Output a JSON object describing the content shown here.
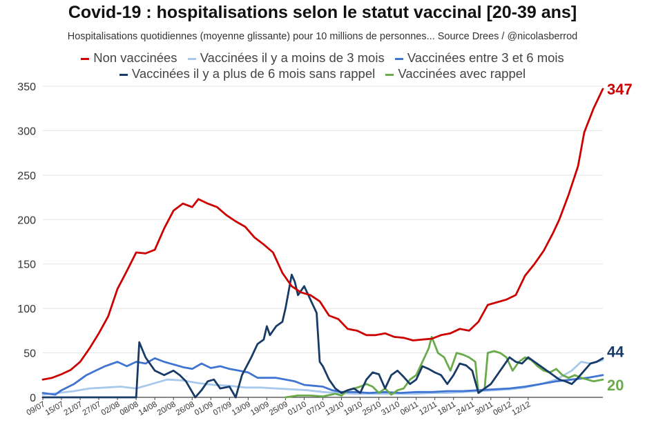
{
  "header": {
    "title": "Covid-19 : hospitalisations selon le statut vaccinal [20-39 ans]",
    "subtitle": "Hospitalisations quotidiennes (moyenne glissante) pour 10 millions de personnes... Source Drees / @nicolasberrod"
  },
  "chart_data": {
    "type": "line",
    "title": "Covid-19 : hospitalisations selon le statut vaccinal [20-39 ans]",
    "ylim": [
      0,
      350
    ],
    "yticks": [
      0,
      50,
      100,
      150,
      200,
      250,
      300,
      350
    ],
    "grid": "horizontal",
    "legend_position": "top",
    "x_tick_labels": [
      "09/07",
      "15/07",
      "21/07",
      "27/07",
      "02/08",
      "08/08",
      "14/08",
      "20/08",
      "26/08",
      "01/09",
      "07/09",
      "13/09",
      "19/09",
      "25/09",
      "01/10",
      "07/10",
      "13/10",
      "19/10",
      "25/10",
      "31/10",
      "06/11",
      "12/11",
      "18/11",
      "24/11",
      "30/11",
      "06/12",
      "12/12"
    ],
    "x_days": 156,
    "series": [
      {
        "name": "Non vaccinées",
        "color": "#cc0000",
        "end_label": "347",
        "points": [
          [
            0,
            20
          ],
          [
            3,
            22
          ],
          [
            6,
            26
          ],
          [
            9,
            31
          ],
          [
            12,
            40
          ],
          [
            15,
            55
          ],
          [
            18,
            72
          ],
          [
            21,
            91
          ],
          [
            24,
            122
          ],
          [
            27,
            142
          ],
          [
            30,
            163
          ],
          [
            33,
            162
          ],
          [
            36,
            166
          ],
          [
            39,
            190
          ],
          [
            42,
            210
          ],
          [
            45,
            218
          ],
          [
            48,
            214
          ],
          [
            50,
            223
          ],
          [
            53,
            218
          ],
          [
            56,
            214
          ],
          [
            59,
            205
          ],
          [
            62,
            198
          ],
          [
            65,
            192
          ],
          [
            68,
            180
          ],
          [
            71,
            172
          ],
          [
            74,
            163
          ],
          [
            77,
            140
          ],
          [
            80,
            125
          ],
          [
            83,
            118
          ],
          [
            86,
            115
          ],
          [
            89,
            108
          ],
          [
            92,
            92
          ],
          [
            95,
            88
          ],
          [
            98,
            77
          ],
          [
            101,
            75
          ],
          [
            104,
            70
          ],
          [
            107,
            70
          ],
          [
            110,
            72
          ],
          [
            113,
            68
          ],
          [
            116,
            67
          ],
          [
            119,
            64
          ],
          [
            122,
            65
          ],
          [
            125,
            66
          ],
          [
            128,
            70
          ],
          [
            131,
            72
          ],
          [
            134,
            77
          ],
          [
            137,
            75
          ],
          [
            140,
            85
          ],
          [
            143,
            104
          ],
          [
            146,
            107
          ],
          [
            149,
            110
          ],
          [
            152,
            115
          ],
          [
            155,
            137
          ],
          [
            158,
            150
          ],
          [
            161,
            165
          ],
          [
            164,
            185
          ],
          [
            166,
            200
          ],
          [
            169,
            228
          ],
          [
            172,
            260
          ],
          [
            174,
            298
          ],
          [
            177,
            325
          ],
          [
            180,
            347
          ]
        ]
      },
      {
        "name": "Vaccinées il y a moins de 3 mois",
        "color": "#a8c8ec",
        "points": [
          [
            0,
            3
          ],
          [
            5,
            5
          ],
          [
            10,
            7
          ],
          [
            15,
            10
          ],
          [
            20,
            11
          ],
          [
            25,
            12
          ],
          [
            30,
            10
          ],
          [
            35,
            15
          ],
          [
            40,
            20
          ],
          [
            45,
            19
          ],
          [
            50,
            16
          ],
          [
            55,
            14
          ],
          [
            60,
            13
          ],
          [
            65,
            11
          ],
          [
            70,
            11
          ],
          [
            75,
            10
          ],
          [
            80,
            9
          ],
          [
            85,
            8
          ],
          [
            90,
            6
          ],
          [
            95,
            5
          ],
          [
            100,
            4
          ],
          [
            105,
            4
          ],
          [
            110,
            4
          ],
          [
            115,
            4
          ],
          [
            120,
            4
          ],
          [
            125,
            5
          ],
          [
            130,
            5
          ],
          [
            135,
            6
          ],
          [
            140,
            7
          ],
          [
            145,
            8
          ],
          [
            150,
            9
          ],
          [
            155,
            11
          ],
          [
            160,
            15
          ],
          [
            165,
            20
          ],
          [
            170,
            30
          ],
          [
            173,
            40
          ],
          [
            176,
            38
          ],
          [
            180,
            42
          ]
        ]
      },
      {
        "name": "Vaccinées entre 3 et 6 mois",
        "color": "#3f74d2",
        "points": [
          [
            0,
            5
          ],
          [
            4,
            3
          ],
          [
            6,
            8
          ],
          [
            10,
            15
          ],
          [
            14,
            25
          ],
          [
            17,
            30
          ],
          [
            20,
            35
          ],
          [
            24,
            40
          ],
          [
            27,
            35
          ],
          [
            30,
            40
          ],
          [
            33,
            38
          ],
          [
            36,
            44
          ],
          [
            39,
            40
          ],
          [
            42,
            37
          ],
          [
            45,
            34
          ],
          [
            48,
            32
          ],
          [
            51,
            38
          ],
          [
            54,
            33
          ],
          [
            57,
            35
          ],
          [
            60,
            32
          ],
          [
            63,
            30
          ],
          [
            66,
            28
          ],
          [
            69,
            22
          ],
          [
            72,
            22
          ],
          [
            75,
            22
          ],
          [
            78,
            20
          ],
          [
            81,
            18
          ],
          [
            84,
            14
          ],
          [
            87,
            13
          ],
          [
            90,
            12
          ],
          [
            93,
            8
          ],
          [
            96,
            6
          ],
          [
            100,
            6
          ],
          [
            105,
            5
          ],
          [
            110,
            6
          ],
          [
            115,
            5
          ],
          [
            120,
            6
          ],
          [
            125,
            6
          ],
          [
            130,
            7
          ],
          [
            135,
            7
          ],
          [
            140,
            8
          ],
          [
            145,
            9
          ],
          [
            150,
            10
          ],
          [
            155,
            12
          ],
          [
            160,
            15
          ],
          [
            165,
            18
          ],
          [
            170,
            20
          ],
          [
            175,
            22
          ],
          [
            180,
            25
          ]
        ]
      },
      {
        "name": "Vaccinées il y a plus de 6 mois sans rappel",
        "color": "#173a66",
        "end_label": "44",
        "points": [
          [
            0,
            0
          ],
          [
            30,
            0
          ],
          [
            31,
            62
          ],
          [
            33,
            45
          ],
          [
            36,
            30
          ],
          [
            39,
            25
          ],
          [
            42,
            30
          ],
          [
            44,
            25
          ],
          [
            46,
            18
          ],
          [
            49,
            0
          ],
          [
            51,
            8
          ],
          [
            53,
            18
          ],
          [
            55,
            20
          ],
          [
            57,
            10
          ],
          [
            60,
            12
          ],
          [
            62,
            0
          ],
          [
            64,
            25
          ],
          [
            67,
            45
          ],
          [
            69,
            60
          ],
          [
            71,
            65
          ],
          [
            72,
            80
          ],
          [
            73,
            70
          ],
          [
            75,
            80
          ],
          [
            77,
            85
          ],
          [
            78,
            100
          ],
          [
            80,
            138
          ],
          [
            81,
            130
          ],
          [
            82,
            115
          ],
          [
            84,
            125
          ],
          [
            86,
            110
          ],
          [
            88,
            95
          ],
          [
            89,
            40
          ],
          [
            90,
            35
          ],
          [
            92,
            20
          ],
          [
            94,
            10
          ],
          [
            96,
            5
          ],
          [
            98,
            8
          ],
          [
            100,
            10
          ],
          [
            102,
            5
          ],
          [
            104,
            20
          ],
          [
            106,
            28
          ],
          [
            108,
            26
          ],
          [
            110,
            10
          ],
          [
            112,
            25
          ],
          [
            114,
            30
          ],
          [
            116,
            23
          ],
          [
            118,
            15
          ],
          [
            120,
            20
          ],
          [
            122,
            35
          ],
          [
            124,
            32
          ],
          [
            126,
            28
          ],
          [
            128,
            25
          ],
          [
            130,
            15
          ],
          [
            132,
            25
          ],
          [
            134,
            38
          ],
          [
            136,
            36
          ],
          [
            138,
            30
          ],
          [
            140,
            5
          ],
          [
            142,
            10
          ],
          [
            144,
            15
          ],
          [
            146,
            25
          ],
          [
            148,
            35
          ],
          [
            150,
            45
          ],
          [
            152,
            40
          ],
          [
            154,
            38
          ],
          [
            156,
            45
          ],
          [
            158,
            40
          ],
          [
            160,
            35
          ],
          [
            162,
            30
          ],
          [
            164,
            25
          ],
          [
            166,
            20
          ],
          [
            168,
            18
          ],
          [
            170,
            15
          ],
          [
            172,
            22
          ],
          [
            174,
            30
          ],
          [
            176,
            38
          ],
          [
            178,
            40
          ],
          [
            180,
            44
          ]
        ]
      },
      {
        "name": "Vaccinées avec rappel",
        "color": "#6aaa4a",
        "end_label": "20",
        "points": [
          [
            78,
            0
          ],
          [
            82,
            2
          ],
          [
            86,
            2
          ],
          [
            90,
            1
          ],
          [
            94,
            4
          ],
          [
            96,
            2
          ],
          [
            98,
            8
          ],
          [
            100,
            10
          ],
          [
            102,
            12
          ],
          [
            104,
            15
          ],
          [
            106,
            12
          ],
          [
            108,
            5
          ],
          [
            110,
            10
          ],
          [
            112,
            3
          ],
          [
            114,
            8
          ],
          [
            116,
            10
          ],
          [
            118,
            20
          ],
          [
            120,
            25
          ],
          [
            122,
            40
          ],
          [
            124,
            55
          ],
          [
            125,
            68
          ],
          [
            127,
            50
          ],
          [
            129,
            45
          ],
          [
            131,
            30
          ],
          [
            133,
            50
          ],
          [
            135,
            48
          ],
          [
            137,
            45
          ],
          [
            139,
            40
          ],
          [
            140,
            5
          ],
          [
            142,
            10
          ],
          [
            143,
            50
          ],
          [
            145,
            52
          ],
          [
            147,
            50
          ],
          [
            149,
            45
          ],
          [
            151,
            30
          ],
          [
            153,
            40
          ],
          [
            155,
            45
          ],
          [
            157,
            42
          ],
          [
            159,
            35
          ],
          [
            161,
            30
          ],
          [
            163,
            28
          ],
          [
            165,
            32
          ],
          [
            167,
            25
          ],
          [
            169,
            22
          ],
          [
            171,
            25
          ],
          [
            173,
            22
          ],
          [
            175,
            20
          ],
          [
            177,
            18
          ],
          [
            180,
            20
          ]
        ]
      }
    ]
  }
}
